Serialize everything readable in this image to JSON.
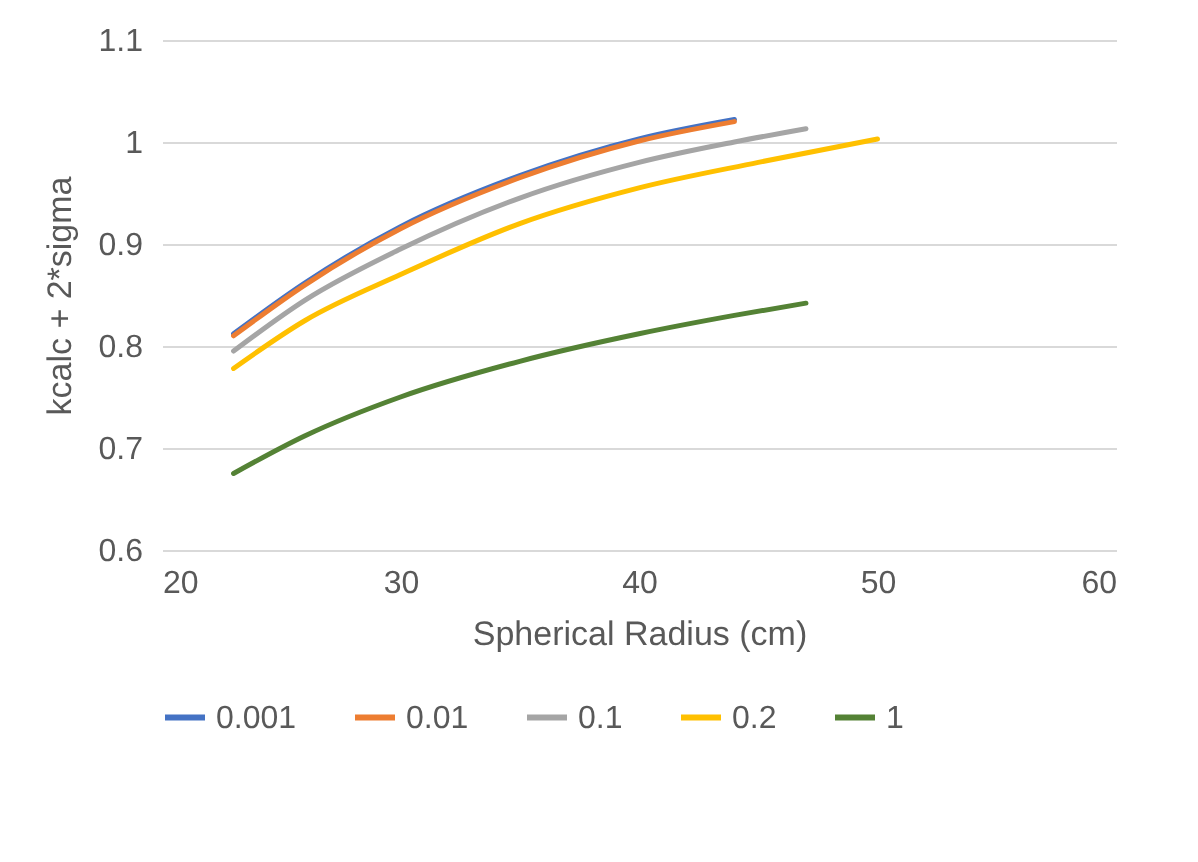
{
  "chart_data": {
    "type": "line",
    "xlabel": "Spherical Radius (cm)",
    "ylabel": "kcalc + 2*sigma",
    "xlim": [
      20,
      60
    ],
    "xticks": [
      20,
      30,
      40,
      50,
      60
    ],
    "ylim": [
      0.6,
      1.1
    ],
    "yticks": [
      0.6,
      0.7,
      0.8,
      0.9,
      1,
      1.1
    ],
    "grid": "y",
    "legend": "bottom",
    "marker": "none",
    "line_style": "solid",
    "series": [
      {
        "name": "0.001",
        "color": "#4472c4",
        "x": [
          23,
          26,
          30,
          35,
          40,
          44
        ],
        "values": [
          0.812,
          0.862,
          0.917,
          0.967,
          1.003,
          1.022
        ]
      },
      {
        "name": "0.01",
        "color": "#ed7d31",
        "x": [
          23,
          26,
          30,
          35,
          40,
          44
        ],
        "values": [
          0.81,
          0.86,
          0.915,
          0.965,
          1.001,
          1.02
        ]
      },
      {
        "name": "0.1",
        "color": "#a5a5a5",
        "x": [
          23,
          26,
          30,
          35,
          40,
          44,
          47
        ],
        "values": [
          0.795,
          0.845,
          0.895,
          0.945,
          0.98,
          1.0,
          1.013
        ]
      },
      {
        "name": "0.2",
        "color": "#ffc000",
        "x": [
          23,
          26,
          30,
          35,
          40,
          45,
          50
        ],
        "values": [
          0.778,
          0.825,
          0.87,
          0.92,
          0.955,
          0.98,
          1.003
        ]
      },
      {
        "name": "1",
        "color": "#548235",
        "x": [
          23,
          26,
          30,
          35,
          40,
          44,
          47
        ],
        "values": [
          0.675,
          0.712,
          0.75,
          0.785,
          0.812,
          0.83,
          0.842
        ]
      }
    ]
  }
}
